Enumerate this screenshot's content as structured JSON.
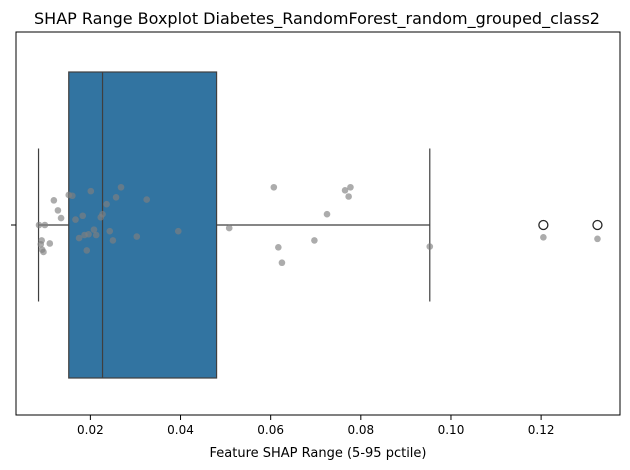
{
  "chart_data": {
    "type": "boxplot",
    "title": "SHAP Range Boxplot Diabetes_RandomForest_random_grouped_class2",
    "xlabel": "Feature SHAP Range (5-95 pctile)",
    "ylabel": "",
    "xlim": [
      0.0035,
      0.1375
    ],
    "xticks": [
      0.02,
      0.04,
      0.06,
      0.08,
      0.1,
      0.12
    ],
    "xtick_labels": [
      "0.02",
      "0.04",
      "0.06",
      "0.08",
      "0.10",
      "0.12"
    ],
    "grid": false,
    "box": {
      "whisker_low": 0.0085,
      "q1": 0.0152,
      "median": 0.0227,
      "q3": 0.048,
      "whisker_high": 0.0953,
      "color": "#3274a1",
      "outliers": [
        0.1205,
        0.1325
      ]
    },
    "points_color": "#808080",
    "points": [
      {
        "x": 0.0086,
        "j": 0.0
      },
      {
        "x": 0.009,
        "j": 0.25
      },
      {
        "x": 0.0093,
        "j": 0.32
      },
      {
        "x": 0.0096,
        "j": 0.35
      },
      {
        "x": 0.0092,
        "j": 0.2
      },
      {
        "x": 0.0099,
        "j": 0.0
      },
      {
        "x": 0.011,
        "j": 0.24
      },
      {
        "x": 0.0119,
        "j": -0.32
      },
      {
        "x": 0.0128,
        "j": -0.19
      },
      {
        "x": 0.0135,
        "j": -0.09
      },
      {
        "x": 0.0152,
        "j": -0.39
      },
      {
        "x": 0.016,
        "j": -0.38
      },
      {
        "x": 0.0167,
        "j": -0.07
      },
      {
        "x": 0.0175,
        "j": 0.17
      },
      {
        "x": 0.0183,
        "j": -0.12
      },
      {
        "x": 0.0187,
        "j": 0.13
      },
      {
        "x": 0.0192,
        "j": 0.33
      },
      {
        "x": 0.0196,
        "j": 0.12
      },
      {
        "x": 0.0201,
        "j": -0.44
      },
      {
        "x": 0.0208,
        "j": 0.06
      },
      {
        "x": 0.0213,
        "j": 0.13
      },
      {
        "x": 0.0223,
        "j": -0.1
      },
      {
        "x": 0.0227,
        "j": -0.14
      },
      {
        "x": 0.0236,
        "j": -0.27
      },
      {
        "x": 0.0243,
        "j": 0.08
      },
      {
        "x": 0.025,
        "j": 0.2
      },
      {
        "x": 0.0257,
        "j": -0.36
      },
      {
        "x": 0.0268,
        "j": -0.49
      },
      {
        "x": 0.0303,
        "j": 0.15
      },
      {
        "x": 0.0325,
        "j": -0.33
      },
      {
        "x": 0.0395,
        "j": 0.08
      },
      {
        "x": 0.0508,
        "j": 0.04
      },
      {
        "x": 0.0607,
        "j": -0.49
      },
      {
        "x": 0.0617,
        "j": 0.29
      },
      {
        "x": 0.0625,
        "j": 0.49
      },
      {
        "x": 0.0697,
        "j": 0.2
      },
      {
        "x": 0.0725,
        "j": -0.14
      },
      {
        "x": 0.0765,
        "j": -0.45
      },
      {
        "x": 0.0773,
        "j": -0.37
      },
      {
        "x": 0.0777,
        "j": -0.49
      },
      {
        "x": 0.0953,
        "j": 0.28
      },
      {
        "x": 0.1205,
        "j": 0.16
      },
      {
        "x": 0.1325,
        "j": 0.18
      }
    ]
  }
}
